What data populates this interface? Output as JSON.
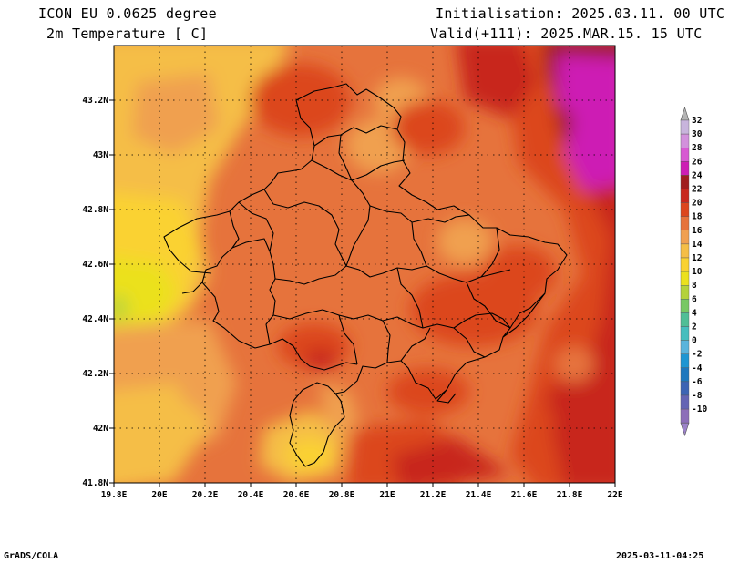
{
  "header": {
    "model": "ICON EU 0.0625 degree",
    "variable": "2m Temperature [ C]",
    "init": "Initialisation: 2025.03.11. 00 UTC",
    "valid": "Valid(+111): 2025.MAR.15. 15 UTC"
  },
  "footer": {
    "left": "GrADS/COLA",
    "right": "2025-03-11-04:25"
  },
  "axes": {
    "lon_ticks": [
      "19.8E",
      "20E",
      "20.2E",
      "20.4E",
      "20.6E",
      "20.8E",
      "21E",
      "21.2E",
      "21.4E",
      "21.6E",
      "21.8E",
      "22E"
    ],
    "lat_ticks": [
      "41.8N",
      "42N",
      "42.2N",
      "42.4N",
      "42.6N",
      "42.8N",
      "43N",
      "43.2N"
    ]
  },
  "colorbar": {
    "labels": [
      "32",
      "30",
      "28",
      "26",
      "24",
      "22",
      "20",
      "18",
      "16",
      "14",
      "12",
      "10",
      "8",
      "6",
      "4",
      "2",
      "0",
      "-2",
      "-4",
      "-6",
      "-8",
      "-10"
    ],
    "colors": [
      "#c8b4dc",
      "#d291dc",
      "#d75ad2",
      "#cd1eb4",
      "#a01e1e",
      "#c8281e",
      "#dc461e",
      "#e6733c",
      "#f0a050",
      "#f5be46",
      "#fad232",
      "#ebe11e",
      "#b4d23c",
      "#78c864",
      "#50be96",
      "#46bebe",
      "#5ab4dc",
      "#1e96d2",
      "#1e78be",
      "#3c64b4",
      "#6464b4",
      "#8c6eb9"
    ]
  }
}
